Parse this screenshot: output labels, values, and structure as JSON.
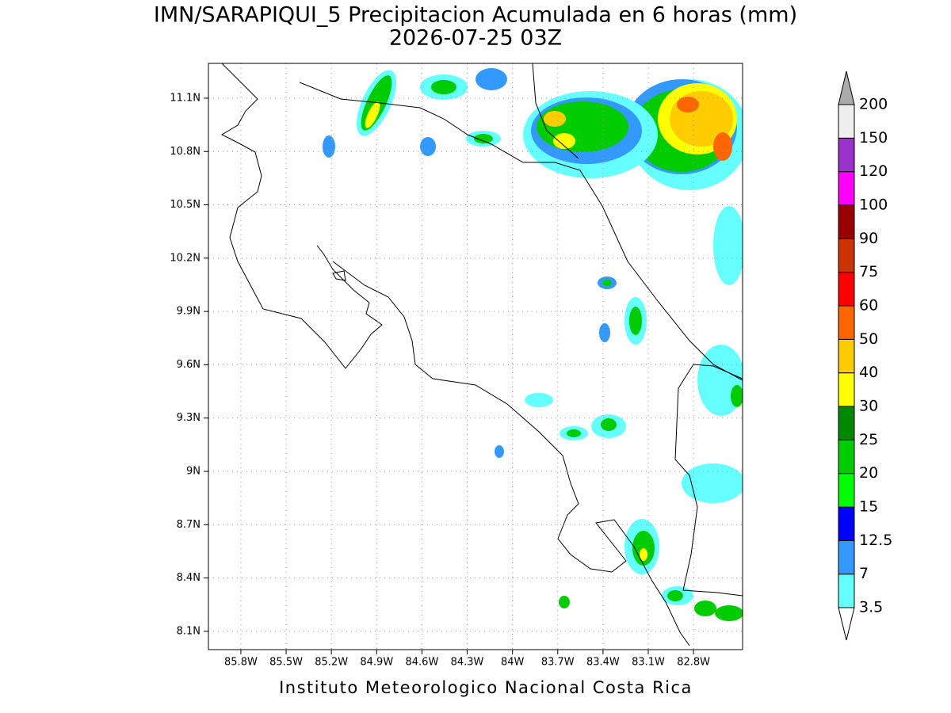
{
  "title": "IMN/SARAPIQUI_5 Precipitacion Acumulada en 6 horas (mm)",
  "subtitle": "2026-07-25 03Z",
  "footer": "Instituto Meteorologico Nacional Costa Rica",
  "map": {
    "xlim": [
      -86.015,
      -82.475
    ],
    "ylim": [
      7.997,
      11.296
    ],
    "xticks": [
      {
        "value": -85.8,
        "label": "85.8W"
      },
      {
        "value": -85.5,
        "label": "85.5W"
      },
      {
        "value": -85.2,
        "label": "85.2W"
      },
      {
        "value": -84.9,
        "label": "84.9W"
      },
      {
        "value": -84.6,
        "label": "84.6W"
      },
      {
        "value": -84.3,
        "label": "84.3W"
      },
      {
        "value": -84,
        "label": "84W"
      },
      {
        "value": -83.7,
        "label": "83.7W"
      },
      {
        "value": -83.4,
        "label": "83.4W"
      },
      {
        "value": -83.1,
        "label": "83.1W"
      },
      {
        "value": -82.8,
        "label": "82.8W"
      }
    ],
    "yticks": [
      {
        "value": 8.1,
        "label": "8.1N"
      },
      {
        "value": 8.4,
        "label": "8.4N"
      },
      {
        "value": 8.7,
        "label": "8.7N"
      },
      {
        "value": 9,
        "label": "9N"
      },
      {
        "value": 9.3,
        "label": "9.3N"
      },
      {
        "value": 9.6,
        "label": "9.6N"
      },
      {
        "value": 9.9,
        "label": "9.9N"
      },
      {
        "value": 10.2,
        "label": "10.2N"
      },
      {
        "value": 10.5,
        "label": "10.5N"
      },
      {
        "value": 10.8,
        "label": "10.8N"
      },
      {
        "value": 11.1,
        "label": "11.1N"
      }
    ],
    "grid": true
  },
  "colorbar": {
    "levels": [
      3.5,
      7,
      12.5,
      15,
      20,
      25,
      30,
      40,
      50,
      60,
      75,
      90,
      100,
      120,
      150,
      200
    ],
    "colors": [
      "#ffffff",
      "#66ffff",
      "#3399ff",
      "#0000ff",
      "#00ff00",
      "#00cc00",
      "#008800",
      "#ffff00",
      "#ffcc00",
      "#ff6600",
      "#ff0000",
      "#cc3300",
      "#990000",
      "#ff00ff",
      "#9933cc",
      "#eeeeee",
      "#aaaaaa"
    ]
  }
}
